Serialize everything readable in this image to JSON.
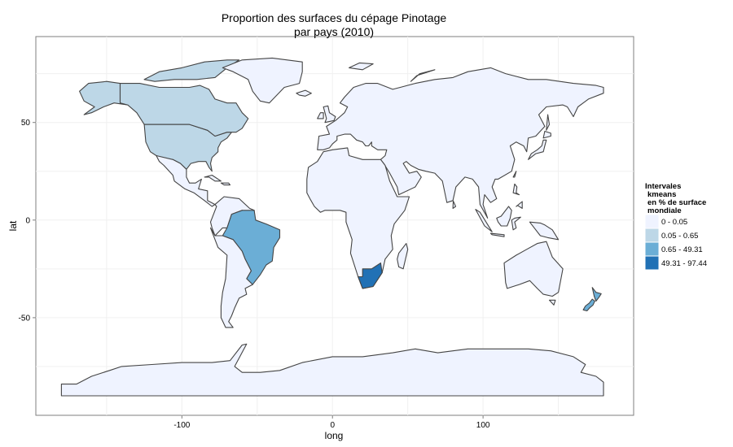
{
  "title_line1": "Proportion des surfaces du cépage Pinotage",
  "title_line2": "par pays (2010)",
  "axes": {
    "xlabel": "long",
    "ylabel": "lat",
    "x_ticks": [
      {
        "value": -100,
        "label": "-100"
      },
      {
        "value": 0,
        "label": "0"
      },
      {
        "value": 100,
        "label": "100"
      }
    ],
    "y_ticks": [
      {
        "value": 50,
        "label": "50"
      },
      {
        "value": 0,
        "label": "0"
      },
      {
        "value": -50,
        "label": "-50"
      }
    ],
    "xlim": [
      -197,
      200
    ],
    "ylim": [
      -100,
      94
    ]
  },
  "legend": {
    "title_lines": [
      "Intervales",
      "kmeans",
      "en % de surface",
      "mondiale"
    ],
    "items": [
      {
        "label": "0 - 0.05",
        "color": "#eff3ff"
      },
      {
        "label": "0.05 - 0.65",
        "color": "#bdd7e7"
      },
      {
        "label": "0.65 - 49.31",
        "color": "#6baed6"
      },
      {
        "label": "49.31 - 97.44",
        "color": "#2171b5"
      }
    ]
  },
  "map_data": {
    "type": "choropleth",
    "countries": [
      {
        "name": "Canada",
        "class": 1
      },
      {
        "name": "United States",
        "class": 1
      },
      {
        "name": "Brazil",
        "class": 2
      },
      {
        "name": "New Zealand",
        "class": 2
      },
      {
        "name": "South Africa",
        "class": 3
      }
    ]
  }
}
